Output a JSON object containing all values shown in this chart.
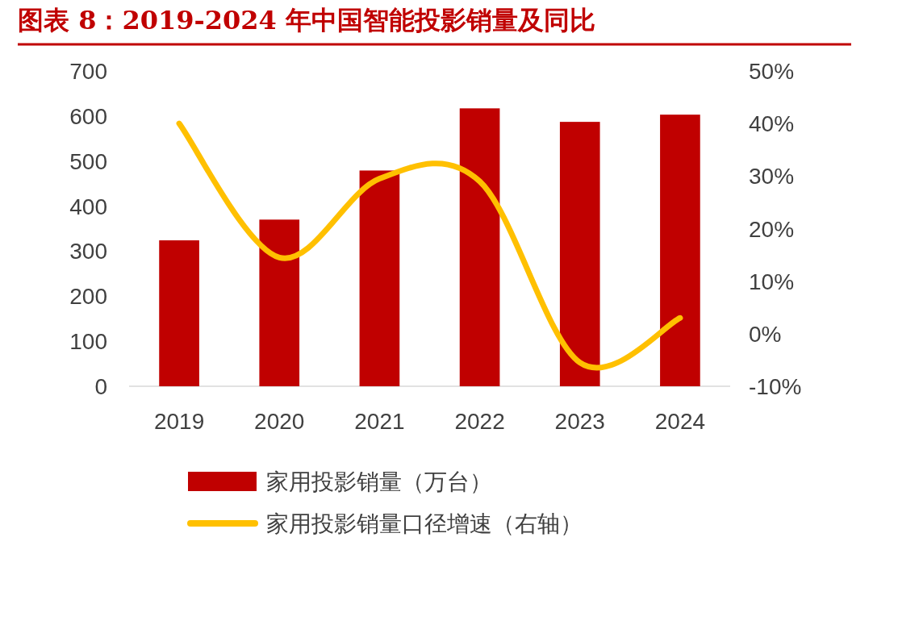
{
  "chart_data": {
    "type": "bar",
    "title": "图表 8：2019-2024 年中国智能投影销量及同比",
    "categories": [
      "2019",
      "2020",
      "2021",
      "2022",
      "2023",
      "2024"
    ],
    "series": [
      {
        "name": "家用投影销量（万台）",
        "color": "#c00000",
        "values": [
          324,
          370,
          479,
          617,
          587,
          603
        ]
      },
      {
        "name": "家用投影销量口径增速（右轴）",
        "type": "line",
        "axis": "y2",
        "color": "#ffc000",
        "values": [
          40,
          14.5,
          29.5,
          29,
          -5.5,
          3
        ]
      }
    ],
    "ylim": [
      0,
      700
    ],
    "yticks": [
      0,
      100,
      200,
      300,
      400,
      500,
      600,
      700
    ],
    "y2lim": [
      -10,
      50
    ],
    "y2ticks": [
      {
        "value": -10,
        "label": "-10%"
      },
      {
        "value": 0,
        "label": "0%"
      },
      {
        "value": 10,
        "label": "10%"
      },
      {
        "value": 20,
        "label": "20%"
      },
      {
        "value": 30,
        "label": "30%"
      },
      {
        "value": 40,
        "label": "40%"
      },
      {
        "value": 50,
        "label": "50%"
      }
    ],
    "grid": false,
    "legend": "bottom",
    "marker": "none",
    "line_style": "solid"
  }
}
